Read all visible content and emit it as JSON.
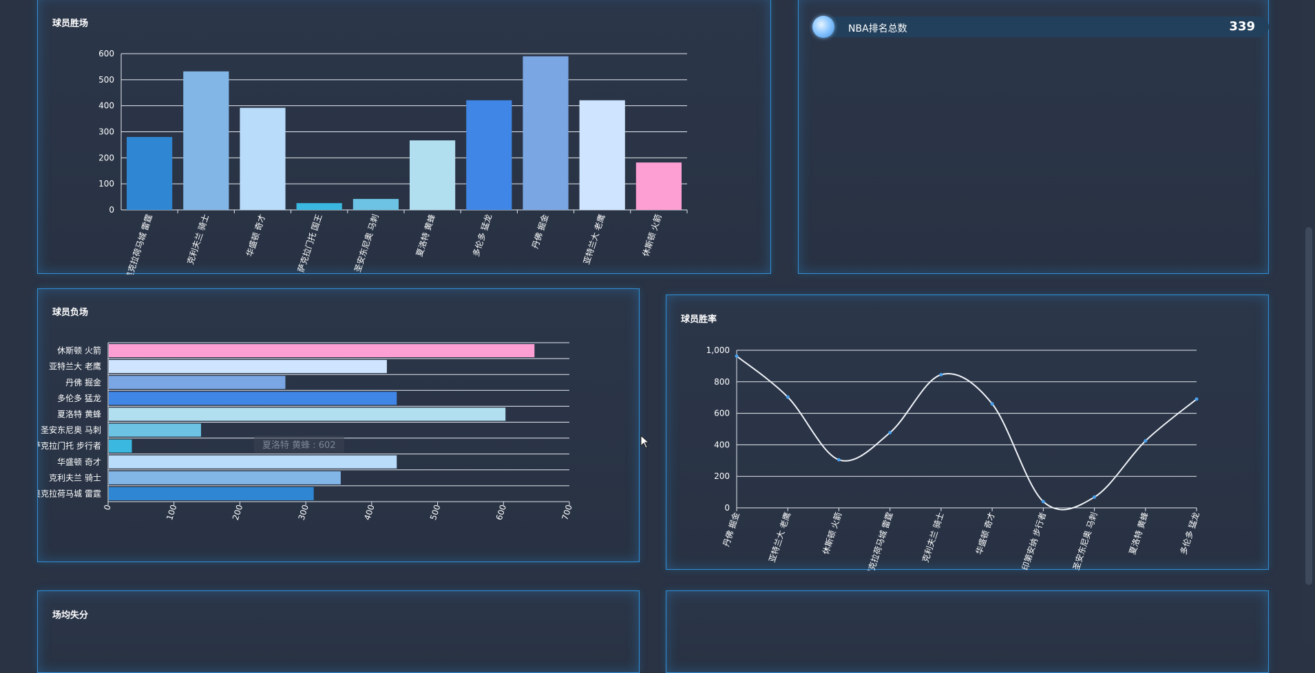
{
  "panels": {
    "wins_title": "球员胜场",
    "losses_title": "球员负场",
    "rate_title": "球员胜率",
    "avg_title": "场均失分"
  },
  "stat": {
    "label": "NBA排名总数",
    "value": "339",
    "icon": "orb-icon"
  },
  "tooltip": {
    "text": "夏洛特 黄蜂 : 602"
  },
  "chart_data": [
    {
      "type": "bar",
      "title": "球员胜场",
      "categories": [
        "奥克拉荷马城 雷霆",
        "克利夫兰 骑士",
        "华盛顿 奇才",
        "萨克拉门托 国王",
        "圣安东尼奥 马刺",
        "夏洛特 黄蜂",
        "多伦多 猛龙",
        "丹佛 掘金",
        "亚特兰大 老鹰",
        "休斯顿 火箭"
      ],
      "values": [
        280,
        532,
        392,
        26,
        42,
        267,
        421,
        590,
        421,
        182
      ],
      "colors": [
        "#2f87d4",
        "#82b6e6",
        "#b9dcfa",
        "#3bb8e0",
        "#6cc3e3",
        "#b2dff0",
        "#3f86e6",
        "#7aa6e4",
        "#cfe5ff",
        "#fe9fd3"
      ],
      "ylim": [
        0,
        600
      ],
      "yticks": [
        0,
        100,
        200,
        300,
        400,
        500,
        600
      ]
    },
    {
      "type": "bar",
      "orientation": "horizontal",
      "title": "球员负场",
      "categories": [
        "奥克拉荷马城 雷霆",
        "克利夫兰 骑士",
        "华盛顿 奇才",
        "萨克拉门托 步行者",
        "圣安东尼奥 马刺",
        "夏洛特 黄蜂",
        "多伦多 猛龙",
        "丹佛 掘金",
        "亚特兰大 老鹰",
        "休斯顿 火箭"
      ],
      "values": [
        311,
        352,
        437,
        35,
        140,
        602,
        437,
        268,
        422,
        646
      ],
      "colors": [
        "#2f87d4",
        "#82b6e6",
        "#b9dcfa",
        "#3bb8e0",
        "#6cc3e3",
        "#b2dff0",
        "#3f86e6",
        "#7aa6e4",
        "#cfe5ff",
        "#fe9fd3"
      ],
      "xlim": [
        0,
        700
      ],
      "xticks": [
        0,
        100,
        200,
        300,
        400,
        500,
        600,
        700
      ]
    },
    {
      "type": "line",
      "title": "球员胜率",
      "categories": [
        "丹佛 掘金",
        "亚特兰大 老鹰",
        "休斯顿 火箭",
        "俄克拉荷马城 雷霆",
        "克利夫兰 骑士",
        "华盛顿 奇才",
        "印第安纳 步行者",
        "圣安东尼奥 马刺",
        "夏洛特 黄蜂",
        "多伦多 猛龙"
      ],
      "values": [
        963,
        703,
        305,
        477,
        845,
        660,
        40,
        68,
        425,
        690
      ],
      "ylim": [
        0,
        1000
      ],
      "yticks": [
        "0",
        "200",
        "400",
        "600",
        "800",
        "1,000"
      ]
    }
  ]
}
